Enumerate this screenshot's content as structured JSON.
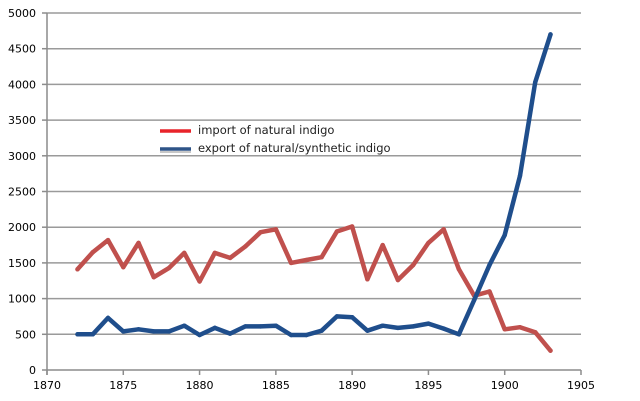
{
  "chart_data": {
    "type": "line",
    "title": "",
    "xlabel": "",
    "ylabel": "",
    "xlim": [
      1870,
      1905
    ],
    "ylim": [
      0,
      5000
    ],
    "grid": true,
    "x_ticks": [
      "1870",
      "1875",
      "1880",
      "1885",
      "1890",
      "1895",
      "1900",
      "1905"
    ],
    "y_ticks": [
      "0",
      "500",
      "1000",
      "1500",
      "2000",
      "2500",
      "3000",
      "3500",
      "4000",
      "4500",
      "5000"
    ],
    "x_tick_values": [
      1870,
      1875,
      1880,
      1885,
      1890,
      1895,
      1900,
      1905
    ],
    "y_tick_values": [
      0,
      500,
      1000,
      1500,
      2000,
      2500,
      3000,
      3500,
      4000,
      4500,
      5000
    ],
    "legend_position": "center-left",
    "x": [
      1872,
      1873,
      1874,
      1875,
      1876,
      1877,
      1878,
      1879,
      1880,
      1881,
      1882,
      1883,
      1884,
      1885,
      1886,
      1887,
      1888,
      1889,
      1890,
      1891,
      1892,
      1893,
      1894,
      1895,
      1896,
      1897,
      1898,
      1899,
      1900,
      1901,
      1902,
      1903
    ],
    "series": [
      {
        "name": "import of natural indigo",
        "color": "#c0504d",
        "legend_color": "#e8242a",
        "values": [
          1410,
          1650,
          1820,
          1440,
          1780,
          1300,
          1430,
          1640,
          1240,
          1640,
          1570,
          1730,
          1930,
          1970,
          1500,
          1540,
          1580,
          1940,
          2010,
          1270,
          1750,
          1260,
          1470,
          1780,
          1970,
          1410,
          1040,
          1100,
          570,
          600,
          530,
          270
        ]
      },
      {
        "name": "export of natural/synthetic indigo",
        "color": "#1f4e8c",
        "legend_color": "#2e5488",
        "values": [
          500,
          500,
          730,
          540,
          570,
          540,
          540,
          620,
          490,
          590,
          510,
          610,
          610,
          620,
          490,
          490,
          550,
          750,
          740,
          550,
          620,
          590,
          610,
          650,
          580,
          500,
          980,
          1470,
          1890,
          2720,
          4030,
          4700
        ]
      }
    ]
  }
}
